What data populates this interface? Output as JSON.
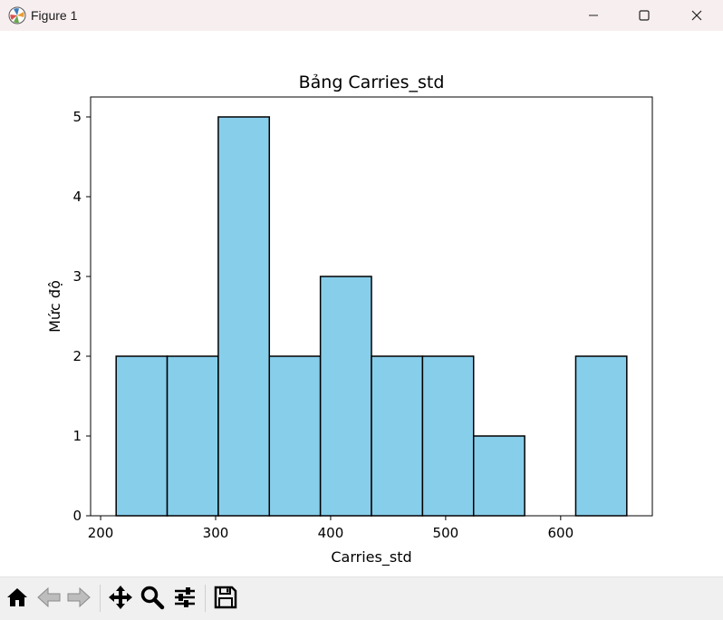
{
  "window": {
    "title": "Figure 1",
    "minimize_icon": "minimize-icon",
    "maximize_icon": "maximize-icon",
    "close_icon": "close-icon"
  },
  "toolbar": {
    "buttons": [
      {
        "name": "home-button",
        "icon": "home-icon"
      },
      {
        "name": "back-button",
        "icon": "back-arrow-icon"
      },
      {
        "name": "forward-button",
        "icon": "forward-arrow-icon"
      },
      {
        "name": "pan-button",
        "icon": "move-icon"
      },
      {
        "name": "zoom-button",
        "icon": "magnifier-icon"
      },
      {
        "name": "configure-subplots-button",
        "icon": "sliders-icon"
      },
      {
        "name": "save-button",
        "icon": "floppy-disk-icon"
      }
    ]
  },
  "colors": {
    "bar_fill": "#87ceeb",
    "bar_edge": "#000000",
    "titlebar_bg": "#f7eeef",
    "toolbar_bg": "#f0f0f0"
  },
  "chart_data": {
    "type": "bar",
    "title": "Bảng Carries_std",
    "xlabel": "Carries_std",
    "ylabel": "Mức độ",
    "bin_edges": [
      213.5,
      257.9,
      302.3,
      346.7,
      391.1,
      435.5,
      479.9,
      524.3,
      568.7,
      613.1,
      657.5
    ],
    "values": [
      2,
      2,
      5,
      2,
      3,
      2,
      2,
      1,
      0,
      2
    ],
    "xlim": [
      191.3,
      679.7
    ],
    "ylim": [
      0,
      5.25
    ],
    "xticks": [
      200,
      300,
      400,
      500,
      600
    ],
    "yticks": [
      0,
      1,
      2,
      3,
      4,
      5
    ],
    "grid": false
  }
}
